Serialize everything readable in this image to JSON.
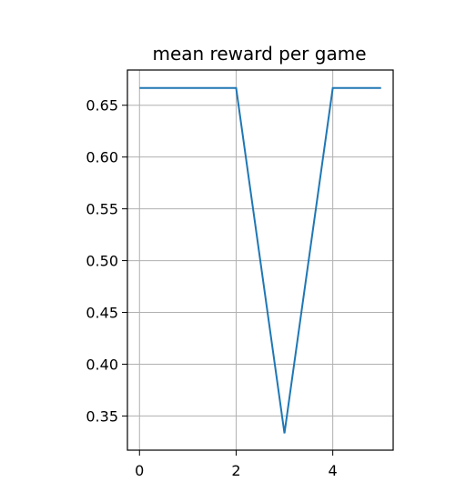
{
  "chart_data": {
    "type": "line",
    "title": "mean reward per game",
    "xlabel": "",
    "ylabel": "",
    "x": [
      0,
      1,
      2,
      3,
      4,
      5
    ],
    "series": [
      {
        "values": [
          0.6667,
          0.6667,
          0.6667,
          0.3333,
          0.6667,
          0.6667
        ],
        "color": "#1f77b4"
      }
    ],
    "xlim": [
      -0.25,
      5.25
    ],
    "ylim": [
      0.317,
      0.684
    ],
    "xticks": [
      0,
      2,
      4
    ],
    "xtick_labels": [
      "0",
      "2",
      "4"
    ],
    "yticks": [
      0.35,
      0.4,
      0.45,
      0.5,
      0.55,
      0.6,
      0.65
    ],
    "ytick_labels": [
      "0.35",
      "0.40",
      "0.45",
      "0.50",
      "0.55",
      "0.60",
      "0.65"
    ],
    "grid": true,
    "legend": "none"
  }
}
